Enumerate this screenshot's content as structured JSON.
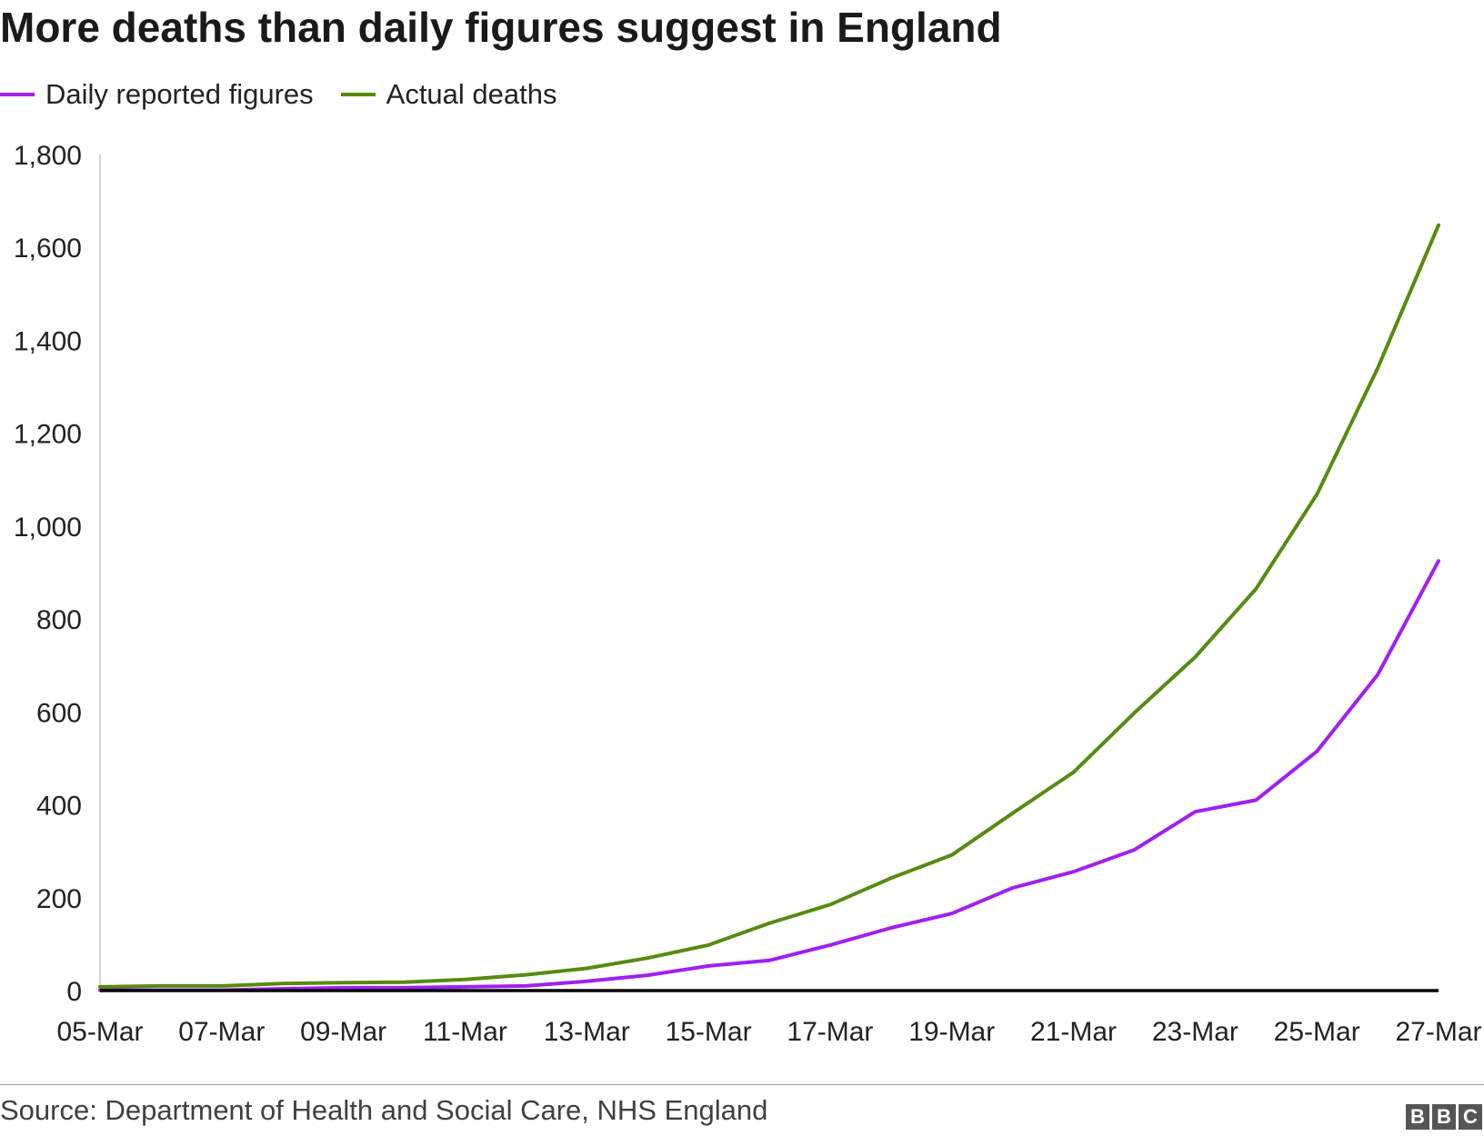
{
  "chart_data": {
    "type": "line",
    "title": "More deaths than daily figures suggest in England",
    "x": [
      "05-Mar",
      "06-Mar",
      "07-Mar",
      "08-Mar",
      "09-Mar",
      "10-Mar",
      "11-Mar",
      "12-Mar",
      "13-Mar",
      "14-Mar",
      "15-Mar",
      "16-Mar",
      "17-Mar",
      "18-Mar",
      "19-Mar",
      "20-Mar",
      "21-Mar",
      "22-Mar",
      "23-Mar",
      "24-Mar",
      "25-Mar",
      "26-Mar",
      "27-Mar"
    ],
    "x_tick_labels": [
      "05-Mar",
      "07-Mar",
      "09-Mar",
      "11-Mar",
      "13-Mar",
      "15-Mar",
      "17-Mar",
      "19-Mar",
      "21-Mar",
      "23-Mar",
      "25-Mar",
      "27-Mar"
    ],
    "y_tick_labels": [
      "0",
      "200",
      "400",
      "600",
      "800",
      "1,000",
      "1,200",
      "1,400",
      "1,600",
      "1,800"
    ],
    "ylim": [
      0,
      1800
    ],
    "grid": false,
    "legend_position": "top-left",
    "series": [
      {
        "name": "Daily reported figures",
        "color": "#a020f0",
        "values": [
          1,
          1,
          1,
          4,
          6,
          6,
          8,
          10,
          20,
          33,
          53,
          65,
          98,
          135,
          166,
          221,
          256,
          303,
          385,
          410,
          515,
          680,
          925
        ]
      },
      {
        "name": "Actual deaths",
        "color": "#588a10",
        "values": [
          8,
          10,
          10,
          15,
          17,
          18,
          24,
          34,
          48,
          70,
          98,
          145,
          185,
          242,
          292,
          382,
          470,
          598,
          718,
          865,
          1068,
          1340,
          1648
        ]
      }
    ]
  },
  "source": "Source: Department of Health and Social Care, NHS England",
  "logo_letters": [
    "B",
    "B",
    "C"
  ]
}
